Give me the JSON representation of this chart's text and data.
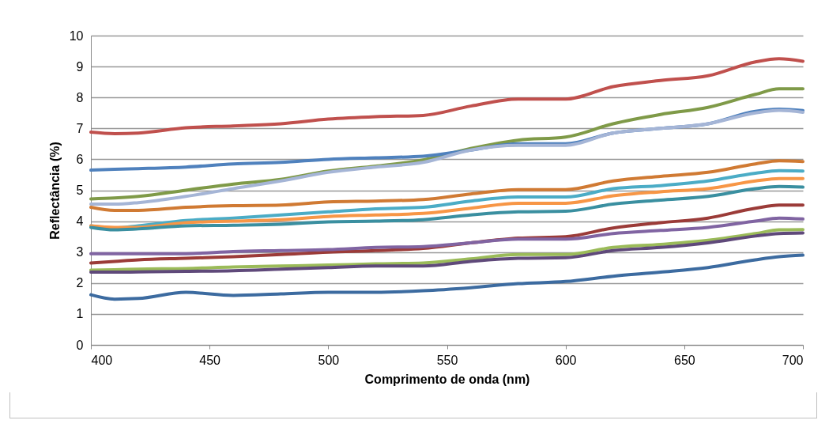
{
  "chart_data": {
    "type": "line",
    "xlabel": "Comprimento de onda (nm)",
    "ylabel": "Reflectância (%)",
    "x": [
      400,
      410,
      420,
      440,
      460,
      480,
      500,
      520,
      540,
      560,
      580,
      600,
      620,
      640,
      660,
      680,
      690,
      700
    ],
    "xlim": [
      400,
      700
    ],
    "xticks": [
      400,
      450,
      500,
      550,
      600,
      650,
      700
    ],
    "ylim": [
      0,
      10
    ],
    "yticks": [
      0,
      1,
      2,
      3,
      4,
      5,
      6,
      7,
      8,
      9,
      10
    ],
    "grid": "y",
    "marker": "none",
    "line_style": "solid",
    "series": [
      {
        "color": "#c0504d",
        "values": [
          6.88,
          6.83,
          6.85,
          7.02,
          7.08,
          7.15,
          7.3,
          7.38,
          7.42,
          7.72,
          7.95,
          7.95,
          8.35,
          8.55,
          8.7,
          9.15,
          9.25,
          9.17
        ]
      },
      {
        "color": "#7f9a48",
        "values": [
          4.72,
          4.75,
          4.8,
          5.0,
          5.2,
          5.35,
          5.62,
          5.78,
          5.98,
          6.35,
          6.62,
          6.72,
          7.15,
          7.45,
          7.68,
          8.1,
          8.28,
          8.28
        ]
      },
      {
        "color": "#4f81bd",
        "values": [
          5.65,
          5.68,
          5.7,
          5.75,
          5.85,
          5.9,
          6.0,
          6.05,
          6.1,
          6.3,
          6.5,
          6.5,
          6.85,
          7.0,
          7.15,
          7.55,
          7.62,
          7.58
        ]
      },
      {
        "color": "#a5b5d6",
        "values": [
          4.55,
          4.55,
          4.6,
          4.8,
          5.05,
          5.3,
          5.58,
          5.75,
          5.9,
          6.3,
          6.45,
          6.45,
          6.85,
          7.0,
          7.15,
          7.5,
          7.58,
          7.52
        ]
      },
      {
        "color": "#d07a33",
        "values": [
          4.45,
          4.35,
          4.35,
          4.45,
          4.5,
          4.52,
          4.62,
          4.65,
          4.7,
          4.88,
          5.02,
          5.02,
          5.3,
          5.45,
          5.58,
          5.85,
          5.95,
          5.93
        ]
      },
      {
        "color": "#4bacc6",
        "values": [
          3.85,
          3.78,
          3.85,
          4.02,
          4.1,
          4.2,
          4.3,
          4.4,
          4.45,
          4.65,
          4.78,
          4.78,
          5.05,
          5.15,
          5.3,
          5.55,
          5.63,
          5.62
        ]
      },
      {
        "color": "#f79646",
        "values": [
          3.85,
          3.8,
          3.8,
          3.95,
          4.0,
          4.05,
          4.15,
          4.2,
          4.25,
          4.42,
          4.58,
          4.58,
          4.82,
          4.95,
          5.05,
          5.3,
          5.38,
          5.38
        ]
      },
      {
        "color": "#3a8fa0",
        "values": [
          3.8,
          3.72,
          3.75,
          3.85,
          3.87,
          3.9,
          3.98,
          4.0,
          4.05,
          4.2,
          4.3,
          4.32,
          4.55,
          4.68,
          4.8,
          5.05,
          5.12,
          5.1
        ]
      },
      {
        "color": "#9b3b38",
        "values": [
          2.65,
          2.7,
          2.75,
          2.8,
          2.85,
          2.92,
          3.0,
          3.05,
          3.12,
          3.3,
          3.45,
          3.5,
          3.78,
          3.95,
          4.1,
          4.42,
          4.52,
          4.52
        ]
      },
      {
        "color": "#8064a2",
        "values": [
          2.95,
          2.95,
          2.95,
          2.95,
          3.02,
          3.05,
          3.08,
          3.15,
          3.18,
          3.3,
          3.42,
          3.42,
          3.6,
          3.7,
          3.8,
          4.0,
          4.1,
          4.07
        ]
      },
      {
        "color": "#9bbb59",
        "values": [
          2.42,
          2.43,
          2.45,
          2.47,
          2.52,
          2.55,
          2.58,
          2.62,
          2.65,
          2.78,
          2.92,
          2.92,
          3.15,
          3.25,
          3.38,
          3.6,
          3.72,
          3.73
        ]
      },
      {
        "color": "#5f497a",
        "values": [
          2.35,
          2.35,
          2.36,
          2.38,
          2.4,
          2.45,
          2.5,
          2.55,
          2.55,
          2.7,
          2.8,
          2.82,
          3.05,
          3.15,
          3.3,
          3.52,
          3.6,
          3.62
        ]
      },
      {
        "color": "#3c6ba0",
        "values": [
          1.62,
          1.48,
          1.5,
          1.7,
          1.6,
          1.65,
          1.7,
          1.7,
          1.75,
          1.85,
          1.98,
          2.05,
          2.22,
          2.35,
          2.5,
          2.75,
          2.85,
          2.9
        ]
      }
    ]
  }
}
